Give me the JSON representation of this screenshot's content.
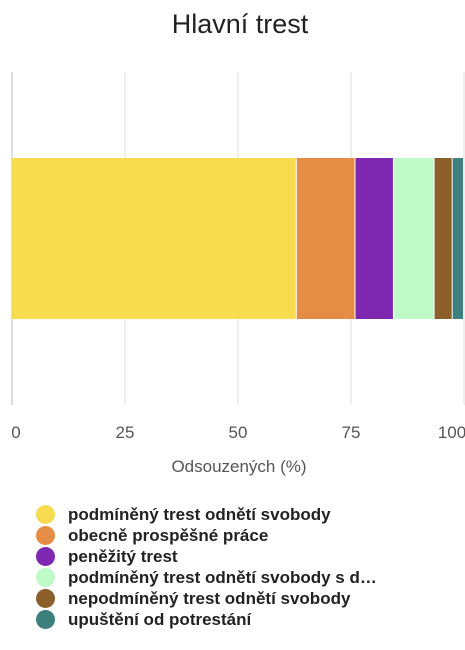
{
  "chart_data": {
    "type": "bar",
    "orientation": "horizontal",
    "stacked": true,
    "title": "Hlavní trest",
    "xlabel": "Odsouzených (%)",
    "ylabel": "",
    "xlim": [
      0,
      100
    ],
    "x_ticks": [
      "0",
      "25",
      "50",
      "75",
      "100"
    ],
    "grid": true,
    "legend_position": "bottom",
    "series": [
      {
        "name": "podmíněný trest odnětí svobody",
        "value": 63,
        "color": "#F7DC4F"
      },
      {
        "name": "obecně prospěšné práce",
        "value": 13,
        "color": "#E58C45"
      },
      {
        "name": "peněžitý trest",
        "value": 8.5,
        "color": "#7E27B1"
      },
      {
        "name": "podmíněný trest odnětí svobody s d…",
        "value": 9,
        "color": "#BFFAC9"
      },
      {
        "name": "nepodmíněný trest odnětí svobody",
        "value": 4,
        "color": "#8B5E2A"
      },
      {
        "name": "upuštění od potrestání",
        "value": 2.5,
        "color": "#3C7F7C"
      }
    ]
  }
}
